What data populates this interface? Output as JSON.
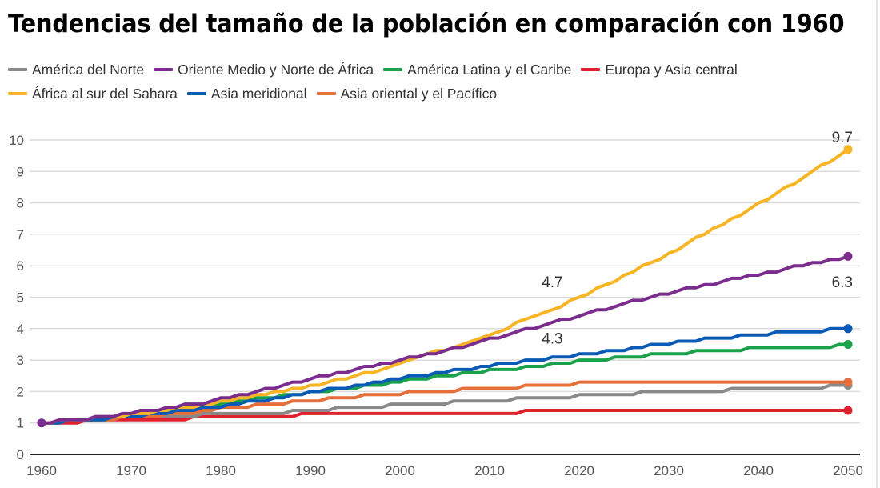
{
  "chart_data": {
    "type": "line",
    "title": "Tendencias del tamaño de la población en comparación con 1960",
    "xlabel": "",
    "ylabel": "",
    "xlim": [
      1960,
      2050
    ],
    "ylim": [
      0,
      10
    ],
    "grid": true,
    "legend_position": "top-left",
    "x_ticks": [
      "1960",
      "1970",
      "1980",
      "1990",
      "2000",
      "2010",
      "2020",
      "2030",
      "2040",
      "2050"
    ],
    "y_ticks": [
      "0",
      "1",
      "2",
      "3",
      "4",
      "5",
      "6",
      "7",
      "8",
      "9",
      "10"
    ],
    "x": [
      1960,
      1961,
      1962,
      1963,
      1964,
      1965,
      1966,
      1967,
      1968,
      1969,
      1970,
      1971,
      1972,
      1973,
      1974,
      1975,
      1976,
      1977,
      1978,
      1979,
      1980,
      1981,
      1982,
      1983,
      1984,
      1985,
      1986,
      1987,
      1988,
      1989,
      1990,
      1991,
      1992,
      1993,
      1994,
      1995,
      1996,
      1997,
      1998,
      1999,
      2000,
      2001,
      2002,
      2003,
      2004,
      2005,
      2006,
      2007,
      2008,
      2009,
      2010,
      2011,
      2012,
      2013,
      2014,
      2015,
      2016,
      2017,
      2018,
      2019,
      2020,
      2021,
      2022,
      2023,
      2024,
      2025,
      2026,
      2027,
      2028,
      2029,
      2030,
      2031,
      2032,
      2033,
      2034,
      2035,
      2036,
      2037,
      2038,
      2039,
      2040,
      2041,
      2042,
      2043,
      2044,
      2045,
      2046,
      2047,
      2048,
      2049,
      2050
    ],
    "series": [
      {
        "name": "América del Norte",
        "color": "#898989",
        "values": [
          1.0,
          1.0,
          1.0,
          1.1,
          1.1,
          1.1,
          1.1,
          1.1,
          1.1,
          1.2,
          1.2,
          1.2,
          1.2,
          1.2,
          1.2,
          1.2,
          1.2,
          1.2,
          1.3,
          1.3,
          1.3,
          1.3,
          1.3,
          1.3,
          1.3,
          1.3,
          1.3,
          1.3,
          1.4,
          1.4,
          1.4,
          1.4,
          1.4,
          1.5,
          1.5,
          1.5,
          1.5,
          1.5,
          1.5,
          1.6,
          1.6,
          1.6,
          1.6,
          1.6,
          1.6,
          1.6,
          1.7,
          1.7,
          1.7,
          1.7,
          1.7,
          1.7,
          1.7,
          1.8,
          1.8,
          1.8,
          1.8,
          1.8,
          1.8,
          1.8,
          1.9,
          1.9,
          1.9,
          1.9,
          1.9,
          1.9,
          1.9,
          2.0,
          2.0,
          2.0,
          2.0,
          2.0,
          2.0,
          2.0,
          2.0,
          2.0,
          2.0,
          2.1,
          2.1,
          2.1,
          2.1,
          2.1,
          2.1,
          2.1,
          2.1,
          2.1,
          2.1,
          2.1,
          2.2,
          2.2,
          2.2
        ],
        "end_label": ""
      },
      {
        "name": "Oriente Medio y Norte de África",
        "color": "#7b2d8e",
        "values": [
          1.0,
          1.0,
          1.1,
          1.1,
          1.1,
          1.1,
          1.2,
          1.2,
          1.2,
          1.3,
          1.3,
          1.4,
          1.4,
          1.4,
          1.5,
          1.5,
          1.6,
          1.6,
          1.6,
          1.7,
          1.8,
          1.8,
          1.9,
          1.9,
          2.0,
          2.1,
          2.1,
          2.2,
          2.3,
          2.3,
          2.4,
          2.5,
          2.5,
          2.6,
          2.6,
          2.7,
          2.8,
          2.8,
          2.9,
          2.9,
          3.0,
          3.1,
          3.1,
          3.2,
          3.2,
          3.3,
          3.4,
          3.4,
          3.5,
          3.6,
          3.7,
          3.7,
          3.8,
          3.9,
          4.0,
          4.0,
          4.1,
          4.2,
          4.3,
          4.3,
          4.4,
          4.5,
          4.6,
          4.6,
          4.7,
          4.8,
          4.9,
          4.9,
          5.0,
          5.1,
          5.1,
          5.2,
          5.3,
          5.3,
          5.4,
          5.4,
          5.5,
          5.6,
          5.6,
          5.7,
          5.7,
          5.8,
          5.8,
          5.9,
          6.0,
          6.0,
          6.1,
          6.1,
          6.2,
          6.2,
          6.3
        ],
        "end_label": "6.3"
      },
      {
        "name": "América Latina y el Caribe",
        "color": "#1aa24a",
        "values": [
          1.0,
          1.0,
          1.1,
          1.1,
          1.1,
          1.1,
          1.2,
          1.2,
          1.2,
          1.2,
          1.3,
          1.3,
          1.3,
          1.4,
          1.4,
          1.4,
          1.5,
          1.5,
          1.5,
          1.6,
          1.6,
          1.6,
          1.7,
          1.7,
          1.8,
          1.8,
          1.8,
          1.9,
          1.9,
          1.9,
          2.0,
          2.0,
          2.0,
          2.1,
          2.1,
          2.1,
          2.2,
          2.2,
          2.2,
          2.3,
          2.3,
          2.4,
          2.4,
          2.4,
          2.5,
          2.5,
          2.5,
          2.6,
          2.6,
          2.6,
          2.7,
          2.7,
          2.7,
          2.7,
          2.8,
          2.8,
          2.8,
          2.9,
          2.9,
          2.9,
          3.0,
          3.0,
          3.0,
          3.0,
          3.1,
          3.1,
          3.1,
          3.1,
          3.2,
          3.2,
          3.2,
          3.2,
          3.2,
          3.3,
          3.3,
          3.3,
          3.3,
          3.3,
          3.3,
          3.4,
          3.4,
          3.4,
          3.4,
          3.4,
          3.4,
          3.4,
          3.4,
          3.4,
          3.4,
          3.5,
          3.5
        ],
        "end_label": ""
      },
      {
        "name": "Europa y Asia central",
        "color": "#e0212f",
        "values": [
          1.0,
          1.0,
          1.0,
          1.0,
          1.0,
          1.1,
          1.1,
          1.1,
          1.1,
          1.1,
          1.1,
          1.1,
          1.1,
          1.1,
          1.1,
          1.1,
          1.1,
          1.2,
          1.2,
          1.2,
          1.2,
          1.2,
          1.2,
          1.2,
          1.2,
          1.2,
          1.2,
          1.2,
          1.2,
          1.3,
          1.3,
          1.3,
          1.3,
          1.3,
          1.3,
          1.3,
          1.3,
          1.3,
          1.3,
          1.3,
          1.3,
          1.3,
          1.3,
          1.3,
          1.3,
          1.3,
          1.3,
          1.3,
          1.3,
          1.3,
          1.3,
          1.3,
          1.3,
          1.3,
          1.4,
          1.4,
          1.4,
          1.4,
          1.4,
          1.4,
          1.4,
          1.4,
          1.4,
          1.4,
          1.4,
          1.4,
          1.4,
          1.4,
          1.4,
          1.4,
          1.4,
          1.4,
          1.4,
          1.4,
          1.4,
          1.4,
          1.4,
          1.4,
          1.4,
          1.4,
          1.4,
          1.4,
          1.4,
          1.4,
          1.4,
          1.4,
          1.4,
          1.4,
          1.4,
          1.4,
          1.4
        ],
        "end_label": ""
      },
      {
        "name": "África al sur del Sahara",
        "color": "#f7b526",
        "values": [
          1.0,
          1.0,
          1.1,
          1.1,
          1.1,
          1.1,
          1.2,
          1.2,
          1.2,
          1.2,
          1.3,
          1.3,
          1.3,
          1.4,
          1.4,
          1.5,
          1.5,
          1.5,
          1.6,
          1.6,
          1.7,
          1.7,
          1.8,
          1.8,
          1.9,
          1.9,
          2.0,
          2.0,
          2.1,
          2.1,
          2.2,
          2.2,
          2.3,
          2.4,
          2.4,
          2.5,
          2.6,
          2.6,
          2.7,
          2.8,
          2.9,
          3.0,
          3.1,
          3.2,
          3.3,
          3.3,
          3.4,
          3.5,
          3.6,
          3.7,
          3.8,
          3.9,
          4.0,
          4.2,
          4.3,
          4.4,
          4.5,
          4.6,
          4.7,
          4.9,
          5.0,
          5.1,
          5.3,
          5.4,
          5.5,
          5.7,
          5.8,
          6.0,
          6.1,
          6.2,
          6.4,
          6.5,
          6.7,
          6.9,
          7.0,
          7.2,
          7.3,
          7.5,
          7.6,
          7.8,
          8.0,
          8.1,
          8.3,
          8.5,
          8.6,
          8.8,
          9.0,
          9.2,
          9.3,
          9.5,
          9.7
        ],
        "end_label": "9.7"
      },
      {
        "name": "Asia meridional",
        "color": "#0a5bb5",
        "values": [
          1.0,
          1.0,
          1.0,
          1.1,
          1.1,
          1.1,
          1.1,
          1.1,
          1.2,
          1.2,
          1.2,
          1.2,
          1.3,
          1.3,
          1.3,
          1.4,
          1.4,
          1.4,
          1.5,
          1.5,
          1.5,
          1.6,
          1.6,
          1.7,
          1.7,
          1.7,
          1.8,
          1.8,
          1.9,
          1.9,
          2.0,
          2.0,
          2.1,
          2.1,
          2.1,
          2.2,
          2.2,
          2.3,
          2.3,
          2.4,
          2.4,
          2.5,
          2.5,
          2.5,
          2.6,
          2.6,
          2.7,
          2.7,
          2.7,
          2.8,
          2.8,
          2.9,
          2.9,
          2.9,
          3.0,
          3.0,
          3.0,
          3.1,
          3.1,
          3.1,
          3.2,
          3.2,
          3.2,
          3.3,
          3.3,
          3.3,
          3.4,
          3.4,
          3.5,
          3.5,
          3.5,
          3.6,
          3.6,
          3.6,
          3.7,
          3.7,
          3.7,
          3.7,
          3.8,
          3.8,
          3.8,
          3.8,
          3.9,
          3.9,
          3.9,
          3.9,
          3.9,
          3.9,
          4.0,
          4.0,
          4.0
        ],
        "end_label": ""
      },
      {
        "name": "Asia oriental y el Pacífico",
        "color": "#e5703a",
        "values": [
          1.0,
          1.0,
          1.0,
          1.1,
          1.1,
          1.1,
          1.1,
          1.1,
          1.1,
          1.2,
          1.2,
          1.2,
          1.2,
          1.2,
          1.3,
          1.3,
          1.3,
          1.3,
          1.4,
          1.4,
          1.5,
          1.5,
          1.5,
          1.5,
          1.6,
          1.6,
          1.6,
          1.6,
          1.7,
          1.7,
          1.7,
          1.7,
          1.8,
          1.8,
          1.8,
          1.8,
          1.9,
          1.9,
          1.9,
          1.9,
          1.9,
          2.0,
          2.0,
          2.0,
          2.0,
          2.0,
          2.0,
          2.1,
          2.1,
          2.1,
          2.1,
          2.1,
          2.1,
          2.1,
          2.2,
          2.2,
          2.2,
          2.2,
          2.2,
          2.2,
          2.3,
          2.3,
          2.3,
          2.3,
          2.3,
          2.3,
          2.3,
          2.3,
          2.3,
          2.3,
          2.3,
          2.3,
          2.3,
          2.3,
          2.3,
          2.3,
          2.3,
          2.3,
          2.3,
          2.3,
          2.3,
          2.3,
          2.3,
          2.3,
          2.3,
          2.3,
          2.3,
          2.3,
          2.3,
          2.3,
          2.3
        ],
        "end_label": ""
      }
    ],
    "annotations": [
      {
        "text": "4.7",
        "x": 2017,
        "y": 5.5,
        "series": "África al sur del Sahara"
      },
      {
        "text": "4.3",
        "x": 2017,
        "y": 3.7,
        "series": "Oriente Medio y Norte de África"
      },
      {
        "text": "9.7",
        "x": 2050,
        "y": 10.1,
        "series": "África al sur del Sahara"
      },
      {
        "text": "6.3",
        "x": 2050,
        "y": 5.5,
        "series": "Oriente Medio y Norte de África"
      }
    ]
  },
  "legend": {
    "rows": [
      [
        0,
        1,
        2,
        3
      ],
      [
        4,
        5,
        6
      ]
    ]
  }
}
